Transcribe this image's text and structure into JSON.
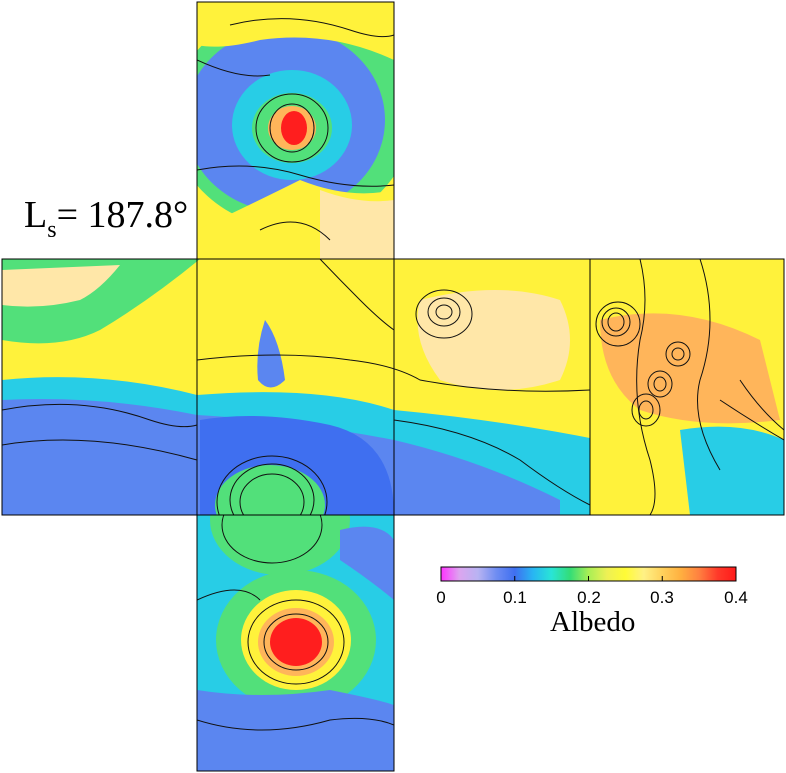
{
  "header": {
    "ls_symbol": "L",
    "ls_subscript": "s",
    "ls_value": "= 187.8°"
  },
  "colorbar": {
    "title": "Albedo",
    "ticks": [
      "0",
      "0.1",
      "0.2",
      "0.3",
      "0.4"
    ],
    "range": [
      0,
      0.4
    ],
    "colors": [
      "#ff33ff",
      "#dca5ef",
      "#b8b3f2",
      "#6f8df2",
      "#3f6ff0",
      "#28b6f2",
      "#29e5d6",
      "#33dd77",
      "#a8ef55",
      "#eef055",
      "#fffb36",
      "#fff185",
      "#ffd15c",
      "#ffb040",
      "#ff8040",
      "#ff3a2a",
      "#ff1a1a"
    ]
  },
  "map": {
    "projection": "cube-net",
    "faces": [
      "north-polar",
      "west-0",
      "west-1",
      "west-2",
      "west-3",
      "south-polar"
    ],
    "colors": {
      "dark": "#3f6ff0",
      "blue": "#5b86f0",
      "cyan": "#28cde6",
      "green": "#52e07a",
      "yellow": "#fff23b",
      "cream": "#ffe7a8",
      "orange": "#ffb55a",
      "red": "#ff1e1e",
      "contour": "#111111"
    }
  }
}
